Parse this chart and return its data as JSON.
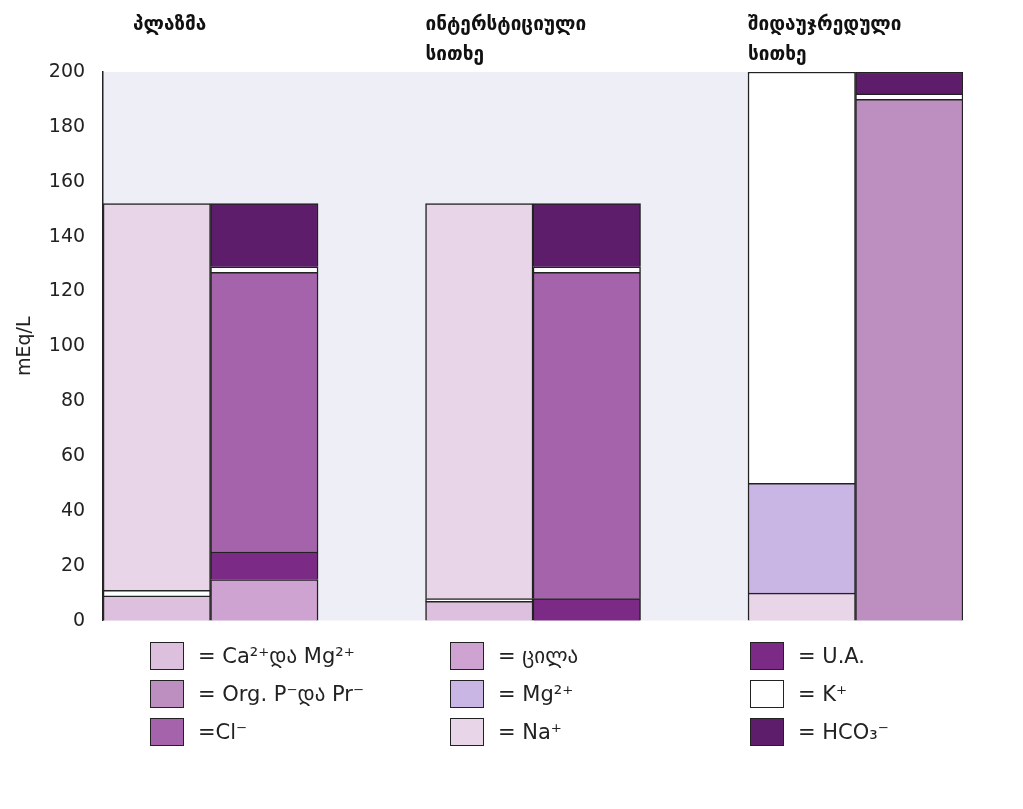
{
  "chart_data": {
    "type": "bar",
    "stacked": true,
    "ylabel": "mEq/L",
    "categories": [
      "პლაზმა",
      null,
      null,
      "ინტერსტიციული სითხე",
      null,
      null,
      "შიდაუჯრედული სითხე",
      null
    ],
    "series": [
      {
        "name": "= Ca²⁺და  Mg²⁺",
        "color": "#dcc0de",
        "values": [
          9,
          null,
          null,
          7,
          null,
          null,
          null,
          null
        ]
      },
      {
        "name": "= ცილა",
        "color": "#cfa3d1",
        "values": [
          null,
          15,
          null,
          null,
          null,
          null,
          null,
          null
        ]
      },
      {
        "name": "= U.A.",
        "color": "#7b2a86",
        "values": [
          null,
          10,
          null,
          null,
          8,
          null,
          null,
          null
        ]
      },
      {
        "name": "= Org. P⁻და  Pr⁻",
        "color": "#bd8fc0",
        "values": [
          null,
          null,
          null,
          null,
          null,
          null,
          null,
          190
        ]
      },
      {
        "color": "#e8d6e8",
        "values": [
          null,
          null,
          null,
          null,
          null,
          null,
          10,
          null
        ]
      },
      {
        "name": "= Mg²⁺",
        "color": "#c9b6e4",
        "values": [
          null,
          null,
          null,
          null,
          null,
          null,
          40,
          null
        ]
      },
      {
        "name": "= K⁺",
        "color": "#ffffff",
        "values": [
          2,
          null,
          null,
          1,
          null,
          null,
          150,
          null
        ]
      },
      {
        "name": "=Cl⁻",
        "color": "#a463ab",
        "values": [
          null,
          102,
          null,
          null,
          119,
          null,
          null,
          null
        ]
      },
      {
        "color": "#ffffff",
        "values": [
          null,
          2,
          null,
          null,
          2,
          null,
          null,
          2
        ]
      },
      {
        "name": "= Na⁺",
        "color": "#e8d6e8",
        "values": [
          141,
          null,
          null,
          144,
          null,
          null,
          null,
          null
        ]
      },
      {
        "name": "= HCO₃⁻",
        "color": "#5e1d6b",
        "values": [
          null,
          23,
          null,
          null,
          23,
          null,
          null,
          8
        ]
      }
    ],
    "ylim": [
      0,
      200
    ],
    "yticks": [
      0,
      20,
      40,
      60,
      80,
      100,
      120,
      140,
      160,
      180,
      200
    ],
    "grid": false,
    "legend": "bottom"
  }
}
